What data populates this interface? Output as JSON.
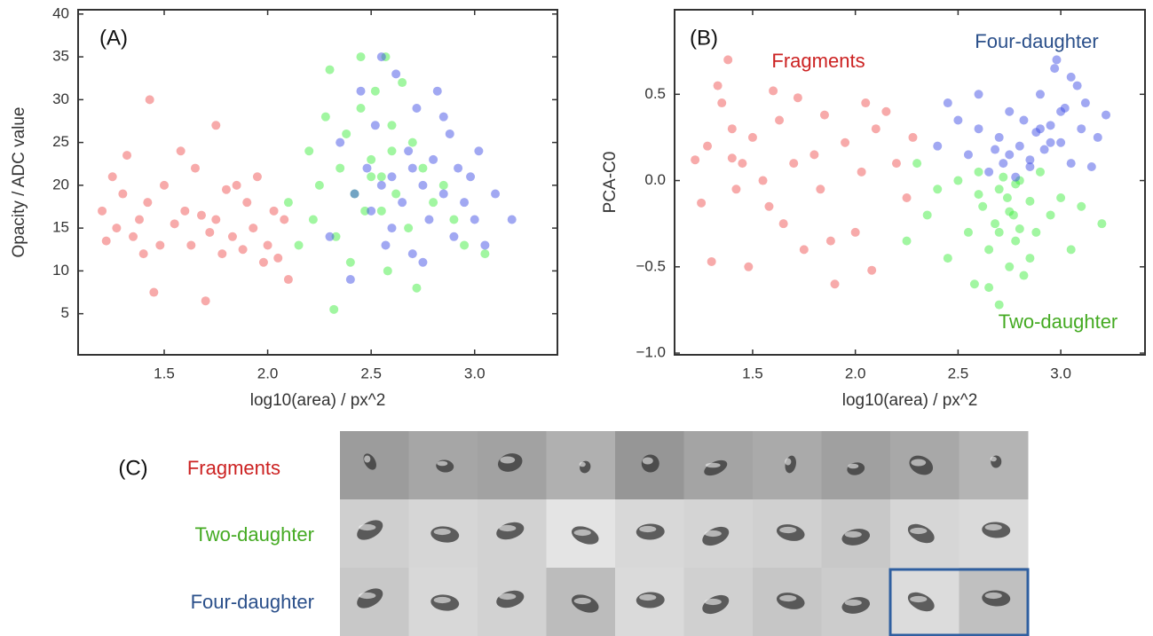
{
  "chart_data": [
    {
      "type": "scatter",
      "annotation": "(A)",
      "xlabel": "log10(area) / px^2",
      "ylabel": "Opacity / ADC value",
      "xlim": [
        1.084,
        3.4
      ],
      "ylim": [
        0.2,
        40.5
      ],
      "xticks": [
        1.5,
        {
          "value": 2.0,
          "label": "2.0"
        },
        2.5,
        {
          "value": 3.0,
          "label": "3.0"
        }
      ],
      "yticks": [
        5,
        10,
        15,
        20,
        25,
        30,
        35,
        40
      ],
      "series": [
        {
          "color": "#f05555",
          "x": [
            1.2,
            1.22,
            1.25,
            1.27,
            1.3,
            1.32,
            1.35,
            1.38,
            1.4,
            1.42,
            1.45,
            1.48,
            1.5,
            1.55,
            1.58,
            1.6,
            1.63,
            1.65,
            1.7,
            1.72,
            1.75,
            1.78,
            1.8,
            1.83,
            1.85,
            1.88,
            1.9,
            1.93,
            1.95,
            1.98,
            2.0,
            2.03,
            2.05,
            2.08,
            2.1,
            1.68,
            1.43,
            1.75
          ],
          "values": [
            17,
            13.5,
            21,
            15,
            19,
            23.5,
            14,
            16,
            12,
            18,
            7.5,
            13,
            20,
            15.5,
            24,
            17,
            13,
            22,
            6.5,
            14.5,
            16,
            12,
            19.5,
            14,
            20,
            12.5,
            18,
            15,
            21,
            11,
            13,
            17,
            11.5,
            16,
            9,
            16.5,
            30,
            27
          ]
        },
        {
          "color": "#44ee44",
          "x": [
            2.1,
            2.15,
            2.2,
            2.22,
            2.25,
            2.28,
            2.3,
            2.32,
            2.33,
            2.35,
            2.38,
            2.4,
            2.42,
            2.45,
            2.47,
            2.5,
            2.52,
            2.55,
            2.57,
            2.58,
            2.6,
            2.62,
            2.65,
            2.68,
            2.7,
            2.72,
            2.75,
            2.8,
            2.85,
            2.9,
            2.95,
            3.05,
            2.45,
            2.6,
            2.55,
            2.5
          ],
          "values": [
            18,
            13,
            24,
            16,
            20,
            28,
            33.5,
            5.5,
            14,
            22,
            26,
            11,
            19,
            29,
            17,
            23,
            31,
            21,
            35,
            10,
            27,
            19,
            32,
            15,
            25,
            8,
            22,
            18,
            20,
            16,
            13,
            12,
            35,
            24,
            17,
            21
          ]
        },
        {
          "color": "#4452e6",
          "x": [
            2.3,
            2.35,
            2.4,
            2.42,
            2.45,
            2.48,
            2.5,
            2.52,
            2.55,
            2.57,
            2.6,
            2.62,
            2.65,
            2.68,
            2.7,
            2.72,
            2.75,
            2.78,
            2.8,
            2.82,
            2.85,
            2.88,
            2.9,
            2.92,
            2.95,
            2.98,
            3.0,
            3.02,
            3.05,
            3.1,
            3.18,
            2.55,
            2.7,
            2.85,
            2.6,
            2.75
          ],
          "values": [
            14,
            25,
            9,
            19,
            31,
            22,
            17,
            27,
            35,
            13,
            21,
            33,
            18,
            24,
            12,
            29,
            20,
            16,
            23,
            31,
            19,
            26,
            14,
            22,
            18,
            21,
            16,
            24,
            13,
            19,
            16,
            20,
            22,
            28,
            15,
            11
          ]
        }
      ]
    },
    {
      "type": "scatter",
      "annotation": "(B)",
      "xlabel": "log10(area) / px^2",
      "ylabel": "PCA-C0",
      "xlim": [
        1.12,
        3.41
      ],
      "ylim": [
        -1.01,
        0.99
      ],
      "xticks": [
        1.5,
        {
          "value": 2.0,
          "label": "2.0"
        },
        2.5,
        {
          "value": 3.0,
          "label": "3.0"
        }
      ],
      "yticks": [
        {
          "value": -1.0,
          "label": "−1.0"
        },
        {
          "value": -0.5,
          "label": "−0.5"
        },
        {
          "value": 0.0,
          "label": "0.0"
        },
        0.5
      ],
      "series": [
        {
          "name": "Fragments",
          "color": "#f05555",
          "label_color": "#cc2222",
          "x": [
            1.22,
            1.25,
            1.28,
            1.3,
            1.33,
            1.35,
            1.38,
            1.4,
            1.42,
            1.45,
            1.48,
            1.5,
            1.55,
            1.58,
            1.6,
            1.63,
            1.65,
            1.7,
            1.72,
            1.75,
            1.8,
            1.83,
            1.85,
            1.88,
            1.9,
            1.95,
            2.0,
            2.03,
            2.05,
            2.08,
            2.1,
            2.15,
            2.2,
            2.25,
            2.28,
            1.4
          ],
          "values": [
            0.12,
            -0.13,
            0.2,
            -0.47,
            0.55,
            0.45,
            0.7,
            0.3,
            -0.05,
            0.1,
            -0.5,
            0.25,
            0.0,
            -0.15,
            0.52,
            0.35,
            -0.25,
            0.1,
            0.48,
            -0.4,
            0.15,
            -0.05,
            0.38,
            -0.35,
            -0.6,
            0.22,
            -0.3,
            0.05,
            0.45,
            -0.52,
            0.3,
            0.4,
            0.1,
            -0.1,
            0.25,
            0.13
          ]
        },
        {
          "name": "Two-daughter",
          "color": "#44ee44",
          "label_color": "#44aa22",
          "x": [
            2.25,
            2.3,
            2.35,
            2.4,
            2.45,
            2.5,
            2.55,
            2.58,
            2.6,
            2.62,
            2.65,
            2.68,
            2.7,
            2.72,
            2.74,
            2.75,
            2.77,
            2.78,
            2.8,
            2.82,
            2.85,
            2.88,
            2.9,
            2.95,
            3.0,
            3.05,
            3.1,
            3.2,
            2.7,
            2.8,
            2.65,
            2.75,
            2.6,
            2.85,
            2.7,
            2.78
          ],
          "values": [
            -0.35,
            0.1,
            -0.2,
            -0.05,
            -0.45,
            0.0,
            -0.3,
            -0.6,
            0.05,
            -0.15,
            -0.4,
            -0.25,
            -0.72,
            0.02,
            -0.1,
            -0.5,
            -0.2,
            -0.35,
            0.0,
            -0.55,
            -0.12,
            -0.3,
            0.05,
            -0.2,
            -0.1,
            -0.4,
            -0.15,
            -0.25,
            -0.05,
            -0.28,
            -0.62,
            -0.18,
            -0.08,
            -0.45,
            -0.3,
            -0.02
          ]
        },
        {
          "name": "Four-daughter",
          "color": "#4452e6",
          "label_color": "#2a4f8a",
          "x": [
            2.4,
            2.45,
            2.5,
            2.55,
            2.6,
            2.65,
            2.7,
            2.72,
            2.75,
            2.78,
            2.8,
            2.82,
            2.85,
            2.88,
            2.9,
            2.92,
            2.95,
            2.97,
            3.0,
            3.02,
            3.05,
            3.08,
            3.1,
            3.12,
            3.15,
            3.18,
            3.22,
            2.98,
            3.05,
            2.6,
            2.68,
            2.85,
            2.9,
            3.0,
            2.75,
            2.95
          ],
          "values": [
            0.2,
            0.45,
            0.35,
            0.15,
            0.3,
            0.05,
            0.25,
            0.1,
            0.4,
            0.02,
            0.2,
            0.35,
            0.12,
            0.28,
            0.5,
            0.18,
            0.32,
            0.65,
            0.22,
            0.42,
            0.1,
            0.55,
            0.3,
            0.45,
            0.08,
            0.25,
            0.38,
            0.7,
            0.6,
            0.5,
            0.18,
            0.08,
            0.3,
            0.4,
            0.15,
            0.22
          ]
        }
      ]
    }
  ],
  "panel_c": {
    "label": "(C)",
    "rows": [
      {
        "label": "Fragments",
        "color": "#cc2222"
      },
      {
        "label": "Two-daughter",
        "color": "#44aa22"
      },
      {
        "label": "Four-daughter",
        "color": "#2a4f8a"
      }
    ]
  }
}
